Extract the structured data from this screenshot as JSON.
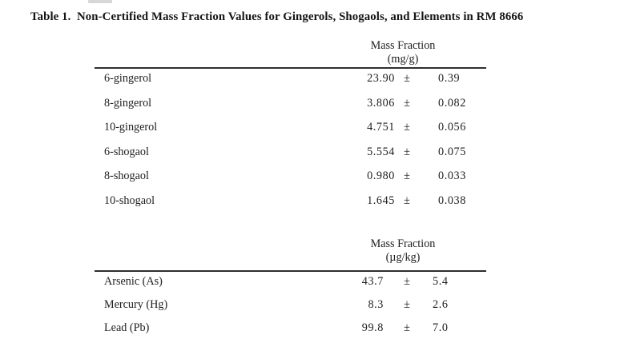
{
  "title": "Table 1.  Non-Certified Mass Fraction Values for Gingerols, Shogaols, and Elements in RM 8666",
  "table1": {
    "header": {
      "line1": "Mass Fraction",
      "line2": "(mg/g)"
    },
    "pm": "±",
    "rows": [
      {
        "label": "6-gingerol",
        "value": "23.90",
        "uncertainty": "0.39"
      },
      {
        "label": "8-gingerol",
        "value": "3.806",
        "uncertainty": "0.082"
      },
      {
        "label": "10-gingerol",
        "value": "4.751",
        "uncertainty": "0.056"
      },
      {
        "label": "6-shogaol",
        "value": "5.554",
        "uncertainty": "0.075"
      },
      {
        "label": "8-shogaol",
        "value": "0.980",
        "uncertainty": "0.033"
      },
      {
        "label": "10-shogaol",
        "value": "1.645",
        "uncertainty": "0.038"
      }
    ]
  },
  "table2": {
    "header": {
      "line1": "Mass Fraction",
      "line2": "(µg/kg)"
    },
    "pm": "±",
    "rows": [
      {
        "label": "Arsenic (As)",
        "value": "43.7",
        "uncertainty": "5.4"
      },
      {
        "label": "Mercury (Hg)",
        "value": "8.3",
        "uncertainty": "2.6"
      },
      {
        "label": "Lead (Pb)",
        "value": "99.8",
        "uncertainty": "7.0"
      }
    ]
  }
}
